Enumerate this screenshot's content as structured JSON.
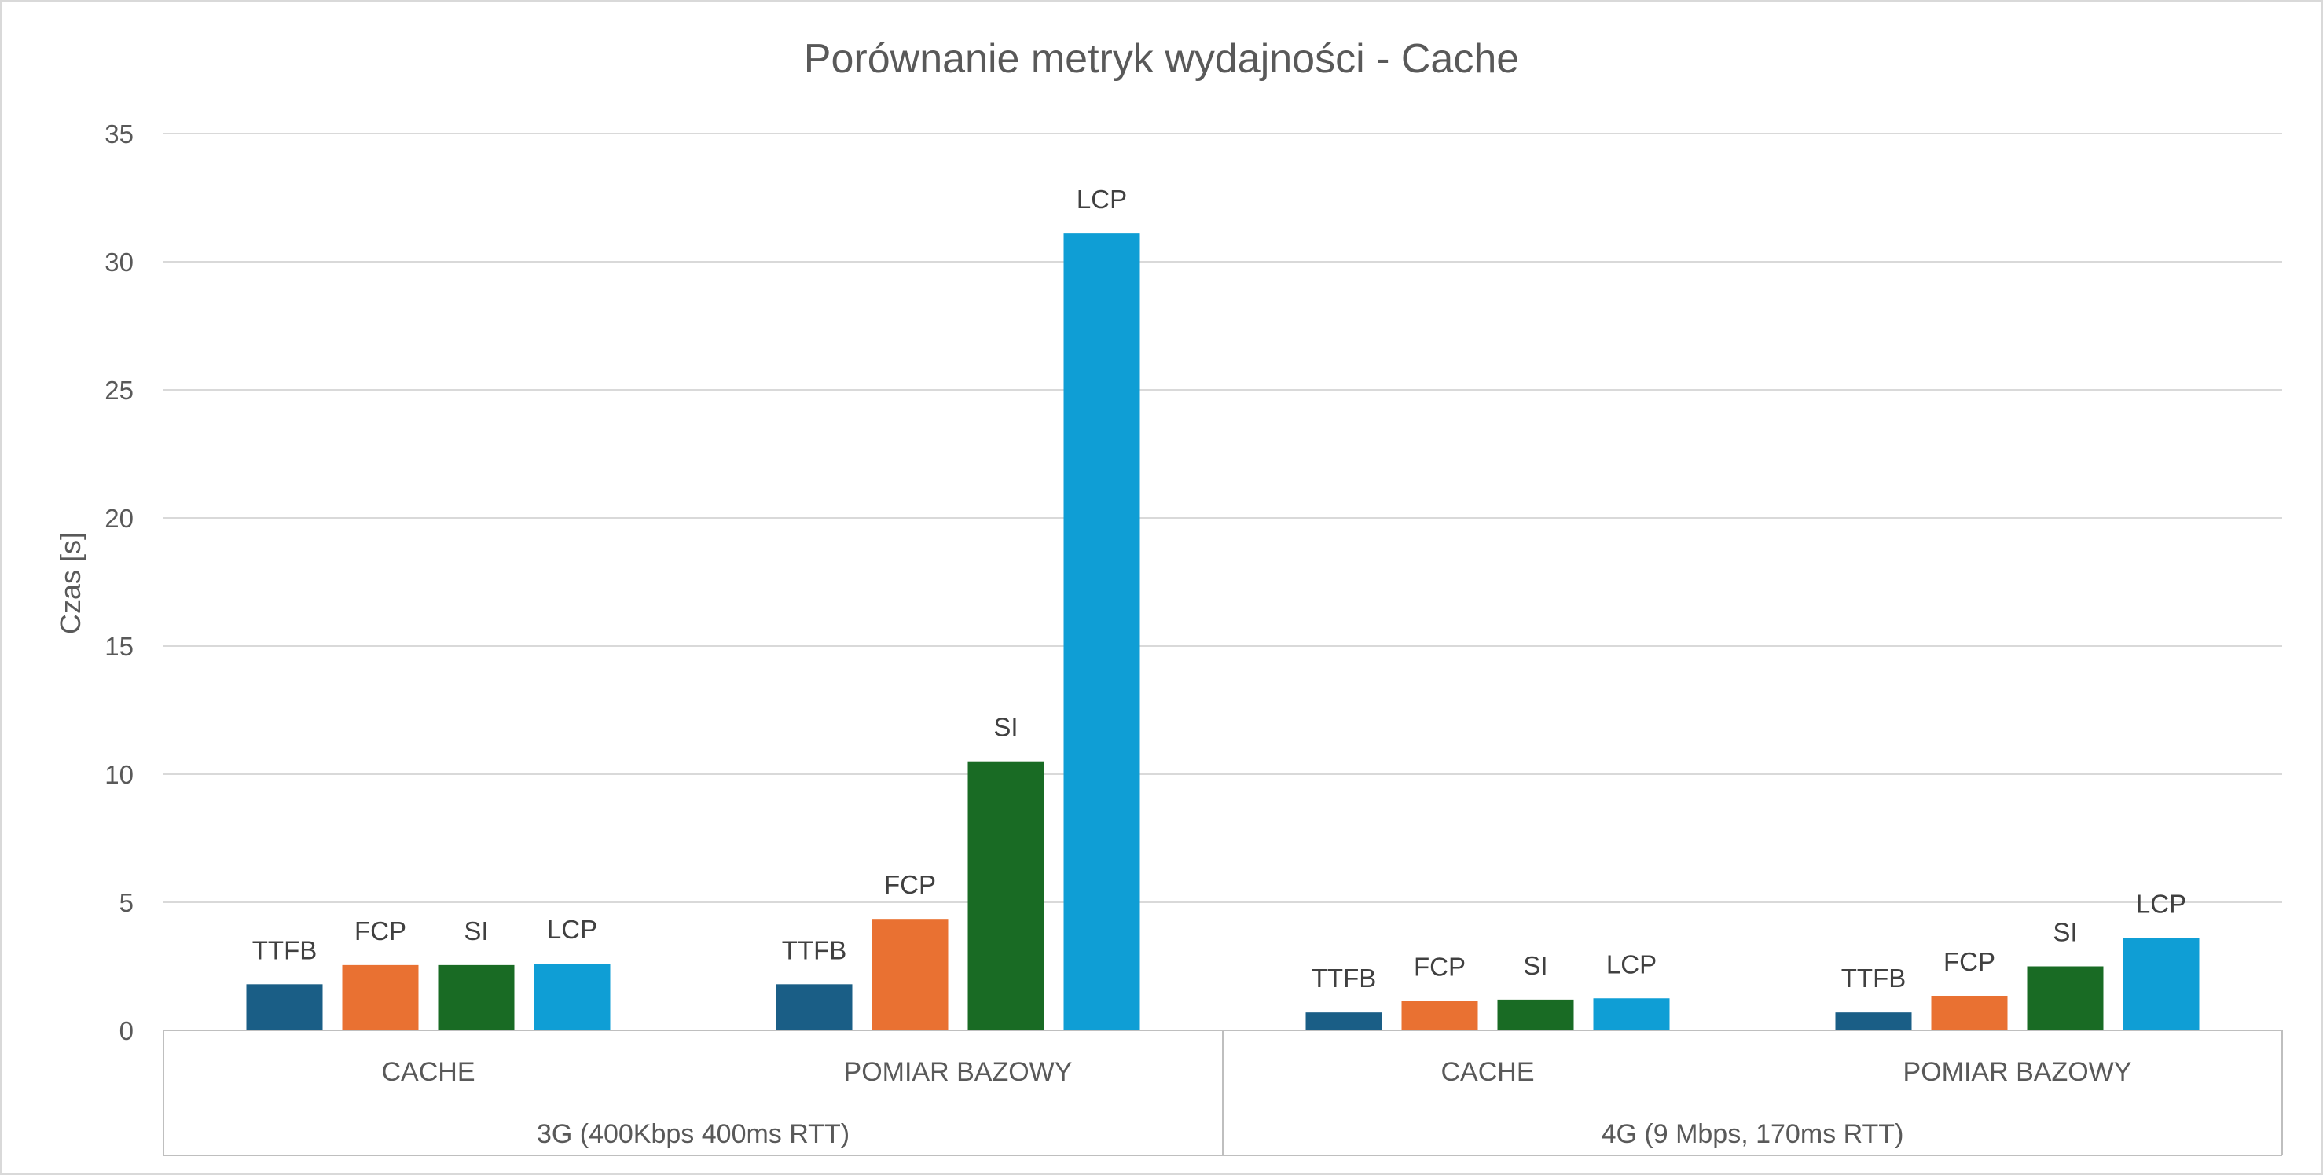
{
  "chart_data": {
    "type": "bar",
    "title": "Porównanie metryk wydajności - Cache",
    "ylabel": "Czas [s]",
    "xlabel": "",
    "ylim": [
      0,
      35
    ],
    "yticks": [
      0,
      5,
      10,
      15,
      20,
      25,
      30,
      35
    ],
    "grid": true,
    "legend": "none",
    "groups": [
      {
        "label": "3G (400Kbps 400ms RTT)",
        "categories": [
          {
            "label": "CACHE",
            "bars": [
              {
                "name": "TTFB",
                "value": 1.8
              },
              {
                "name": "FCP",
                "value": 2.55
              },
              {
                "name": "SI",
                "value": 2.55
              },
              {
                "name": "LCP",
                "value": 2.6
              }
            ]
          },
          {
            "label": "POMIAR BAZOWY",
            "bars": [
              {
                "name": "TTFB",
                "value": 1.8
              },
              {
                "name": "FCP",
                "value": 4.35
              },
              {
                "name": "SI",
                "value": 10.5
              },
              {
                "name": "LCP",
                "value": 31.1
              }
            ]
          }
        ]
      },
      {
        "label": "4G (9 Mbps, 170ms RTT)",
        "categories": [
          {
            "label": "CACHE",
            "bars": [
              {
                "name": "TTFB",
                "value": 0.7
              },
              {
                "name": "FCP",
                "value": 1.15
              },
              {
                "name": "SI",
                "value": 1.2
              },
              {
                "name": "LCP",
                "value": 1.25
              }
            ]
          },
          {
            "label": "POMIAR BAZOWY",
            "bars": [
              {
                "name": "TTFB",
                "value": 0.7
              },
              {
                "name": "FCP",
                "value": 1.35
              },
              {
                "name": "SI",
                "value": 2.5
              },
              {
                "name": "LCP",
                "value": 3.6
              }
            ]
          }
        ]
      }
    ],
    "colors": {
      "TTFB": "#1a5e86",
      "FCP": "#e97132",
      "SI": "#196b24",
      "LCP": "#0f9ed5"
    }
  }
}
